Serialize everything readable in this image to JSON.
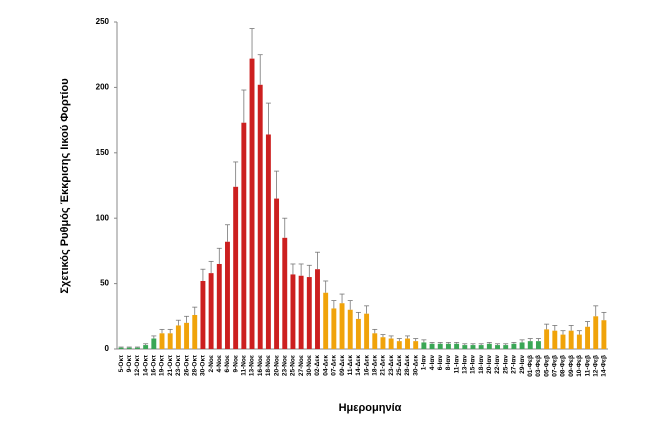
{
  "chart_data": {
    "type": "bar",
    "y_label": "Σχετικός Ρυθμός Έκκρισης Ιικού Φορτίου",
    "x_label": "Ημερομηνία",
    "categories": [
      "5-Οκτ",
      "9-Οκτ",
      "12-Οκτ",
      "14-Οκτ",
      "16-Οκτ",
      "19-Οκτ",
      "21-Οκτ",
      "23-Οκτ",
      "26-Οκτ",
      "28-Οκτ",
      "30-Οκτ",
      "2-Νοε",
      "4-Νοε",
      "6-Νοε",
      "9-Νοε",
      "11-Νοε",
      "13-Νοε",
      "16-Νοε",
      "18-Νοε",
      "20-Νοε",
      "23-Νοε",
      "25-Νοε",
      "27-Νοε",
      "30-Νοε",
      "02-Δεκ",
      "04-Δεκ",
      "07-Δεκ",
      "09-Δεκ",
      "11-Δεκ",
      "14-Δεκ",
      "16-Δεκ",
      "18-Δεκ",
      "21-Δεκ",
      "23-Δεκ",
      "25-Δεκ",
      "28-Δεκ",
      "30-Δεκ",
      "1-Ιαν",
      "4-Ιαν",
      "6-Ιαν",
      "8-Ιαν",
      "11-Ιαν",
      "13-Ιαν",
      "15-Ιαν",
      "18-Ιαν",
      "20-Ιαν",
      "22-Ιαν",
      "25-Ιαν",
      "27-Ιαν",
      "29-Ιαν",
      "01-Φεβ",
      "03-Φεβ",
      "05-Φεβ",
      "07-Φεβ",
      "08-Φεβ",
      "09-Φεβ",
      "10-Φεβ",
      "11-Φεβ",
      "12-Φεβ",
      "14-Φεβ"
    ],
    "values": [
      1,
      1,
      1,
      3,
      8,
      12,
      12,
      18,
      20,
      26,
      52,
      58,
      65,
      82,
      124,
      173,
      222,
      202,
      164,
      115,
      85,
      57,
      56,
      55,
      61,
      43,
      31,
      35,
      30,
      23,
      27,
      12,
      9,
      8,
      6,
      8,
      6,
      5,
      4,
      4,
      4,
      4,
      3,
      3,
      3,
      4,
      3,
      3,
      4,
      5,
      6,
      6,
      15,
      14,
      11,
      14,
      11,
      17,
      25,
      22
    ],
    "errors": [
      0.5,
      0.5,
      0.5,
      1,
      2,
      3,
      3,
      4,
      5,
      6,
      9,
      9,
      12,
      13,
      19,
      25,
      23,
      23,
      24,
      21,
      15,
      8,
      9,
      9,
      13,
      9,
      6,
      7,
      7,
      5,
      6,
      3,
      2,
      2,
      2,
      2,
      2,
      2,
      1,
      1,
      1,
      1,
      1,
      1,
      1,
      1,
      1,
      1,
      1,
      2,
      2,
      2,
      4,
      4,
      3,
      4,
      3,
      4,
      8,
      6
    ],
    "colors": [
      "#3aa655",
      "#3aa655",
      "#3aa655",
      "#3aa655",
      "#3aa655",
      "#f0a30a",
      "#f0a30a",
      "#f0a30a",
      "#f0a30a",
      "#f0a30a",
      "#cc1f1f",
      "#cc1f1f",
      "#cc1f1f",
      "#cc1f1f",
      "#cc1f1f",
      "#cc1f1f",
      "#cc1f1f",
      "#cc1f1f",
      "#cc1f1f",
      "#cc1f1f",
      "#cc1f1f",
      "#cc1f1f",
      "#cc1f1f",
      "#cc1f1f",
      "#cc1f1f",
      "#f0a30a",
      "#f0a30a",
      "#f0a30a",
      "#f0a30a",
      "#f0a30a",
      "#f0a30a",
      "#f0a30a",
      "#f0a30a",
      "#f0a30a",
      "#f0a30a",
      "#f0a30a",
      "#f0a30a",
      "#3aa655",
      "#3aa655",
      "#3aa655",
      "#3aa655",
      "#3aa655",
      "#3aa655",
      "#3aa655",
      "#3aa655",
      "#3aa655",
      "#3aa655",
      "#3aa655",
      "#3aa655",
      "#3aa655",
      "#3aa655",
      "#3aa655",
      "#f0a30a",
      "#f0a30a",
      "#f0a30a",
      "#f0a30a",
      "#f0a30a",
      "#f0a30a",
      "#f0a30a",
      "#f0a30a"
    ],
    "ylim": [
      0,
      250
    ],
    "yticks": [
      0,
      50,
      100,
      150,
      200,
      250
    ],
    "grid": false
  }
}
